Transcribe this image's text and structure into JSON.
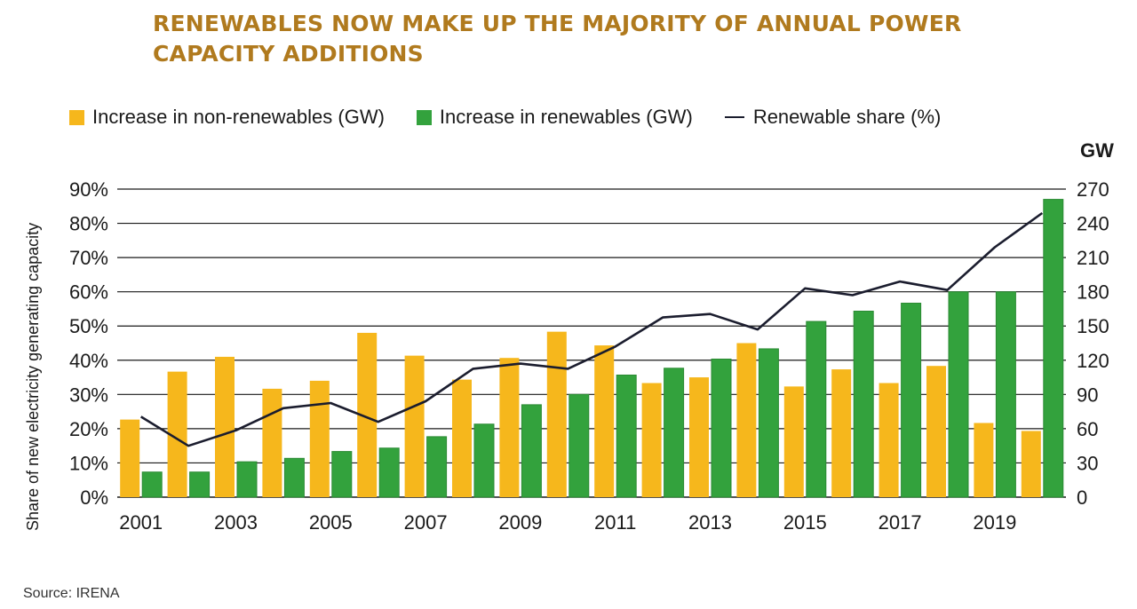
{
  "chart_data": {
    "type": "bar",
    "title_lines": [
      "RENEWABLES NOW MAKE UP THE MAJORITY OF ANNUAL POWER",
      "CAPACITY ADDITIONS"
    ],
    "categories": [
      "2001",
      "2002",
      "2003",
      "2004",
      "2005",
      "2006",
      "2007",
      "2008",
      "2009",
      "2010",
      "2011",
      "2012",
      "2013",
      "2014",
      "2015",
      "2016",
      "2017",
      "2018",
      "2019",
      "2020"
    ],
    "x_tick_labels": [
      "2001",
      "2003",
      "2005",
      "2007",
      "2009",
      "2011",
      "2013",
      "2015",
      "2017",
      "2019"
    ],
    "series": [
      {
        "name": "Increase in non-renewables (GW)",
        "color": "#f6b71c",
        "axis": "right",
        "values": [
          68,
          110,
          123,
          95,
          102,
          144,
          124,
          103,
          122,
          145,
          133,
          100,
          105,
          135,
          97,
          112,
          100,
          115,
          65,
          58
        ]
      },
      {
        "name": "Increase in renewables (GW)",
        "color": "#33a23d",
        "axis": "right",
        "values": [
          22,
          22,
          31,
          34,
          40,
          43,
          53,
          64,
          81,
          90,
          107,
          113,
          121,
          130,
          154,
          163,
          170,
          180,
          180,
          261
        ]
      },
      {
        "name": "Renewable share (%)",
        "color": "#1b1d2e",
        "type": "line",
        "axis": "left",
        "values": [
          23.5,
          15,
          19.5,
          26,
          27.5,
          22,
          28,
          37.5,
          39,
          37.5,
          44,
          52.5,
          53.5,
          49,
          61,
          59,
          63,
          60.5,
          73,
          83
        ]
      }
    ],
    "y_left": {
      "label": "Share of new electricity generating capacity",
      "min": 0,
      "max": 90,
      "ticks": [
        "0%",
        "10%",
        "20%",
        "30%",
        "40%",
        "50%",
        "60%",
        "70%",
        "80%",
        "90%"
      ]
    },
    "y_right": {
      "unit": "GW",
      "min": 0,
      "max": 270,
      "ticks": [
        "0",
        "30",
        "60",
        "90",
        "120",
        "150",
        "180",
        "210",
        "240",
        "270"
      ]
    },
    "grid": true,
    "legend_position": "top"
  },
  "source": "Source: IRENA"
}
